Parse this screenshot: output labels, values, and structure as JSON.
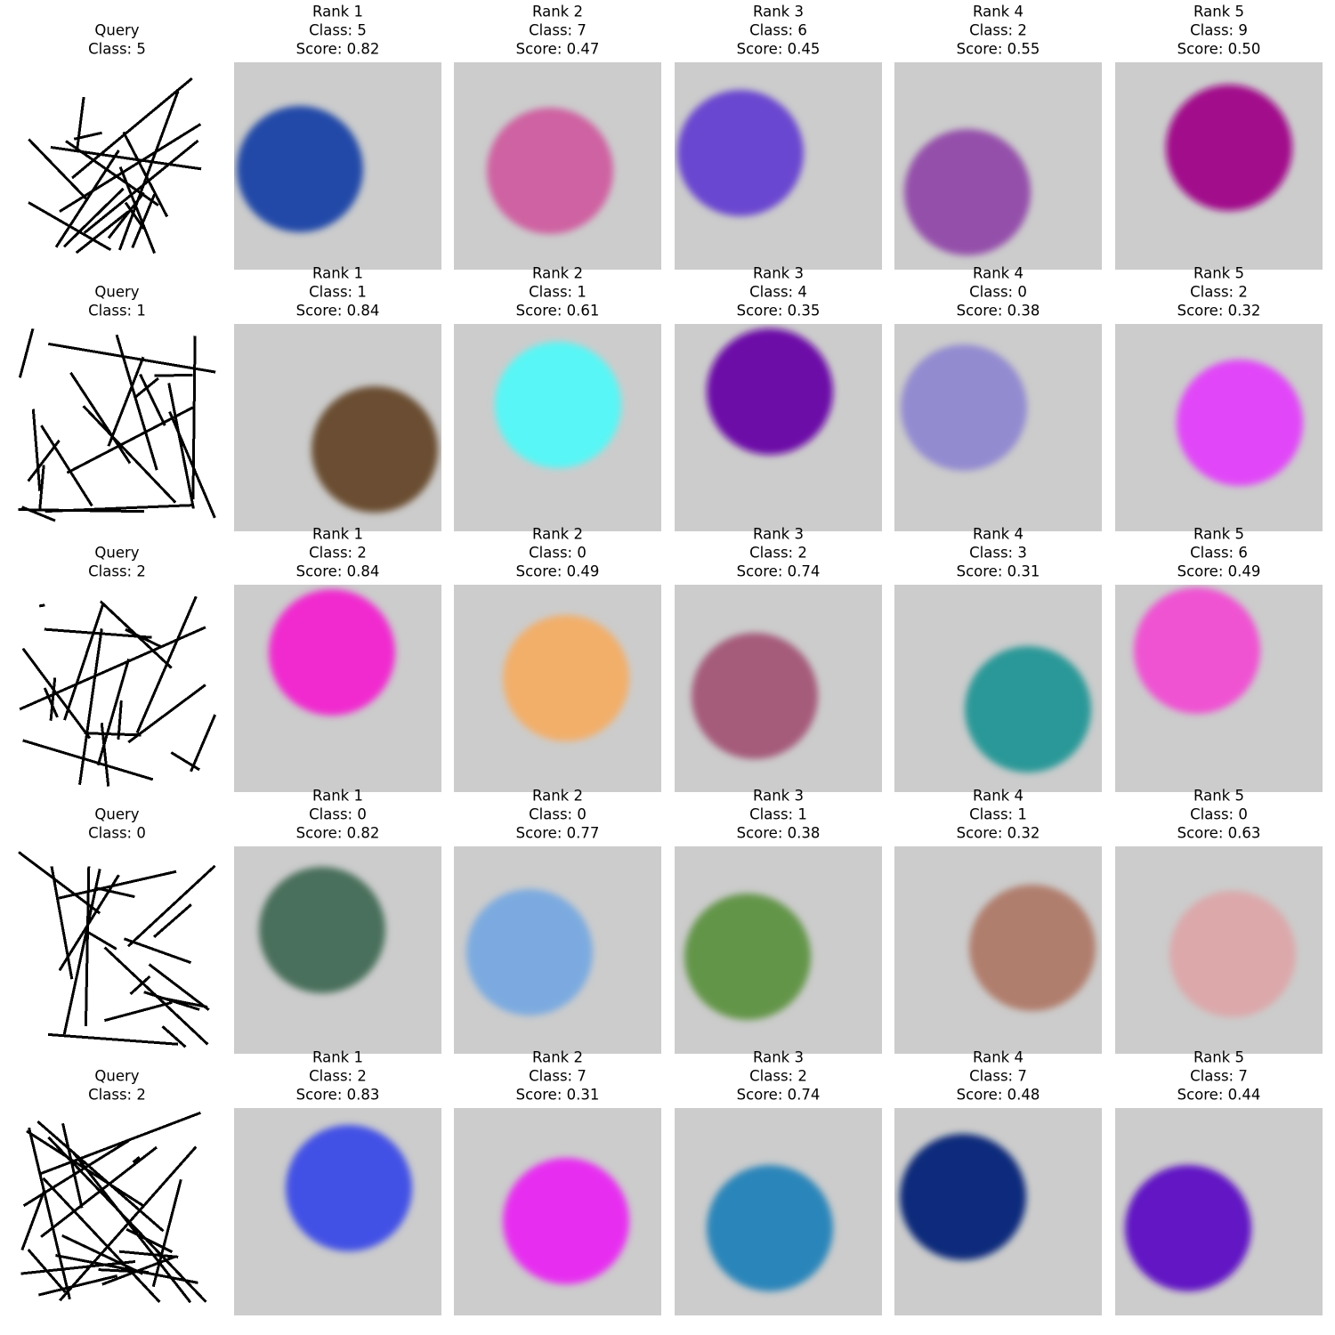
{
  "rows": [
    {
      "query": {
        "title": [
          "Query",
          "Class: 5"
        ]
      },
      "results": [
        {
          "title": [
            "Rank 1",
            "Class: 5",
            "Score: 0.82"
          ],
          "color": "#2349a8"
        },
        {
          "title": [
            "Rank 2",
            "Class: 7",
            "Score: 0.47"
          ],
          "color": "#cf62a2"
        },
        {
          "title": [
            "Rank 3",
            "Class: 6",
            "Score: 0.45"
          ],
          "color": "#6b47d0"
        },
        {
          "title": [
            "Rank 4",
            "Class: 2",
            "Score: 0.55"
          ],
          "color": "#9450aa"
        },
        {
          "title": [
            "Rank 5",
            "Class: 9",
            "Score: 0.50"
          ],
          "color": "#a20a8b"
        }
      ]
    },
    {
      "query": {
        "title": [
          "Query",
          "Class: 1"
        ]
      },
      "results": [
        {
          "title": [
            "Rank 1",
            "Class: 1",
            "Score: 0.84"
          ],
          "color": "#6b4e33"
        },
        {
          "title": [
            "Rank 2",
            "Class: 1",
            "Score: 0.61"
          ],
          "color": "#58f6f6"
        },
        {
          "title": [
            "Rank 3",
            "Class: 4",
            "Score: 0.35"
          ],
          "color": "#6d0aa8"
        },
        {
          "title": [
            "Rank 4",
            "Class: 0",
            "Score: 0.38"
          ],
          "color": "#938bd0"
        },
        {
          "title": [
            "Rank 5",
            "Class: 2",
            "Score: 0.32"
          ],
          "color": "#e147f8"
        }
      ]
    },
    {
      "query": {
        "title": [
          "Query",
          "Class: 2"
        ]
      },
      "results": [
        {
          "title": [
            "Rank 1",
            "Class: 2",
            "Score: 0.84"
          ],
          "color": "#f02acf"
        },
        {
          "title": [
            "Rank 2",
            "Class: 0",
            "Score: 0.49"
          ],
          "color": "#f2af6a"
        },
        {
          "title": [
            "Rank 3",
            "Class: 2",
            "Score: 0.74"
          ],
          "color": "#a55c7a"
        },
        {
          "title": [
            "Rank 4",
            "Class: 3",
            "Score: 0.31"
          ],
          "color": "#2a9898"
        },
        {
          "title": [
            "Rank 5",
            "Class: 6",
            "Score: 0.49"
          ],
          "color": "#ef52d2"
        }
      ]
    },
    {
      "query": {
        "title": [
          "Query",
          "Class: 0"
        ]
      },
      "results": [
        {
          "title": [
            "Rank 1",
            "Class: 0",
            "Score: 0.82"
          ],
          "color": "#4a705c"
        },
        {
          "title": [
            "Rank 2",
            "Class: 0",
            "Score: 0.77"
          ],
          "color": "#7caae0"
        },
        {
          "title": [
            "Rank 3",
            "Class: 1",
            "Score: 0.38"
          ],
          "color": "#64954a"
        },
        {
          "title": [
            "Rank 4",
            "Class: 1",
            "Score: 0.32"
          ],
          "color": "#b07e6d"
        },
        {
          "title": [
            "Rank 5",
            "Class: 0",
            "Score: 0.63"
          ],
          "color": "#dca8aa"
        }
      ]
    },
    {
      "query": {
        "title": [
          "Query",
          "Class: 2"
        ]
      },
      "results": [
        {
          "title": [
            "Rank 1",
            "Class: 2",
            "Score: 0.83"
          ],
          "color": "#4251e5"
        },
        {
          "title": [
            "Rank 2",
            "Class: 7",
            "Score: 0.31"
          ],
          "color": "#e72ff0"
        },
        {
          "title": [
            "Rank 3",
            "Class: 2",
            "Score: 0.74"
          ],
          "color": "#2c85ba"
        },
        {
          "title": [
            "Rank 4",
            "Class: 7",
            "Score: 0.48"
          ],
          "color": "#0c2c7c"
        },
        {
          "title": [
            "Rank 5",
            "Class: 7",
            "Score: 0.44"
          ],
          "color": "#6219c4"
        }
      ]
    }
  ]
}
